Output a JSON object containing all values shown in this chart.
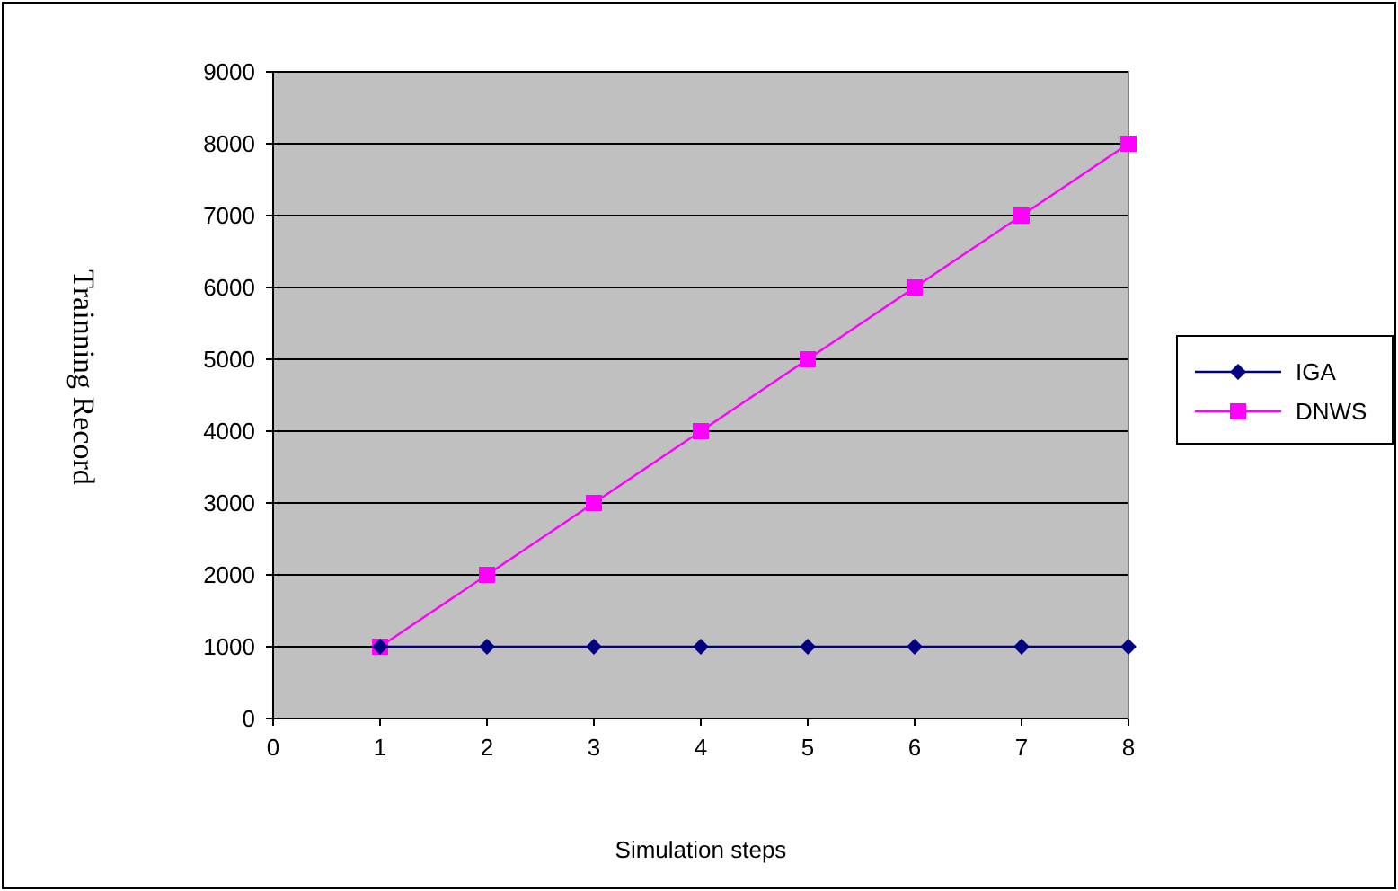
{
  "chart_data": {
    "type": "line",
    "xlabel": "Simulation steps",
    "ylabel": "Trainning Record",
    "x": [
      1,
      2,
      3,
      4,
      5,
      6,
      7,
      8
    ],
    "series": [
      {
        "name": "IGA",
        "color": "#000080",
        "marker": "diamond",
        "values": [
          1000,
          1000,
          1000,
          1000,
          1000,
          1000,
          1000,
          1000
        ]
      },
      {
        "name": "DNWS",
        "color": "#ff00ff",
        "marker": "square",
        "values": [
          1000,
          2000,
          3000,
          4000,
          5000,
          6000,
          7000,
          8000
        ]
      }
    ],
    "xlim": [
      0,
      8
    ],
    "xticks": [
      0,
      1,
      2,
      3,
      4,
      5,
      6,
      7,
      8
    ],
    "ylim": [
      0,
      9000
    ],
    "yticks": [
      0,
      1000,
      2000,
      3000,
      4000,
      5000,
      6000,
      7000,
      8000,
      9000
    ],
    "grid": "y",
    "legend": "right",
    "line_style": "solid"
  }
}
